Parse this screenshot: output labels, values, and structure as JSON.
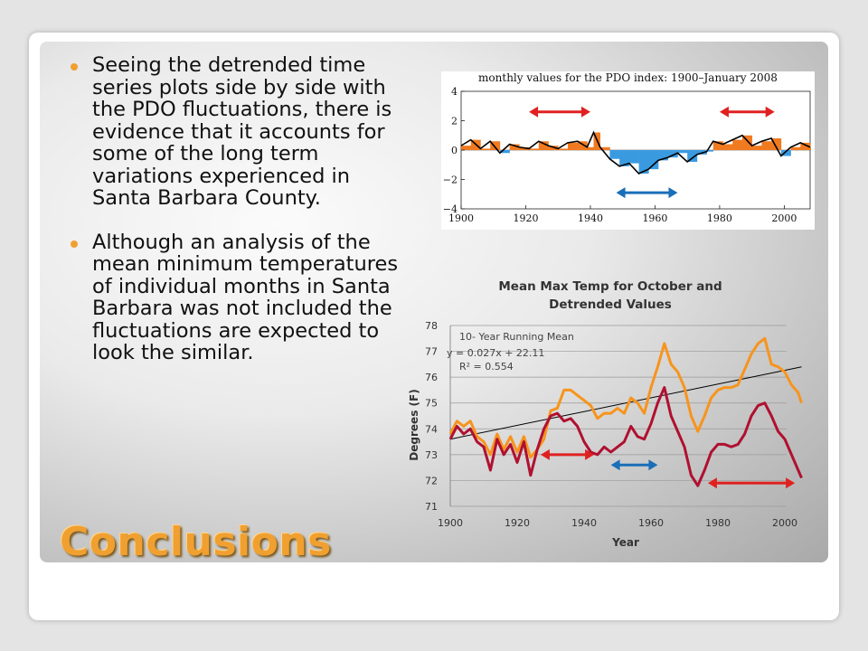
{
  "slide": {
    "title": "Conclusions",
    "bullets": [
      "Seeing the detrended time series plots side by side with the PDO fluctuations, there is evidence that it accounts for some of the long term variations experienced in Santa Barbara County.",
      "Although an analysis of the mean minimum temperatures of individual months in Santa Barbara was not included the fluctuations are expected to look the similar."
    ],
    "accent_color": "#f0a030"
  },
  "chart_data": [
    {
      "type": "area",
      "title": "monthly values for the PDO index: 1900–January 2008",
      "x_ticks": [
        "1900",
        "1920",
        "1940",
        "1960",
        "1980",
        "2000"
      ],
      "y_ticks": [
        "4",
        "2",
        "0",
        "−2",
        "−4"
      ],
      "xlim": [
        1900,
        2008
      ],
      "ylim": [
        -4,
        4
      ],
      "colors": {
        "positive": "#f07a20",
        "negative": "#3a9ae0",
        "smoothed": "#000000"
      },
      "x": [
        1900,
        1903,
        1906,
        1909,
        1912,
        1915,
        1918,
        1921,
        1924,
        1927,
        1930,
        1933,
        1936,
        1939,
        1941,
        1943,
        1946,
        1949,
        1952,
        1955,
        1958,
        1961,
        1964,
        1967,
        1970,
        1973,
        1976,
        1978,
        1981,
        1984,
        1987,
        1990,
        1993,
        1996,
        1999,
        2002,
        2005,
        2008
      ],
      "values": [
        0.3,
        0.7,
        0.1,
        0.6,
        -0.2,
        0.4,
        0.2,
        0.1,
        0.6,
        0.3,
        0.1,
        0.5,
        0.6,
        0.2,
        1.2,
        0.2,
        -0.6,
        -1.1,
        -0.9,
        -1.6,
        -1.3,
        -0.7,
        -0.5,
        -0.2,
        -0.8,
        -0.3,
        -0.1,
        0.6,
        0.4,
        0.7,
        1.0,
        0.3,
        0.6,
        0.8,
        -0.4,
        0.2,
        0.5,
        0.2
      ],
      "annotations": [
        {
          "shape": "double-arrow",
          "color": "#e02020",
          "x_range": [
            1921,
            1940
          ],
          "y": 2.6
        },
        {
          "shape": "double-arrow",
          "color": "#e02020",
          "x_range": [
            1980,
            1997
          ],
          "y": 2.6
        },
        {
          "shape": "double-arrow",
          "color": "#1a6fb8",
          "x_range": [
            1948,
            1967
          ],
          "y": -2.9
        }
      ]
    },
    {
      "type": "line",
      "title": "Mean Max Temp for October and Detrended Values",
      "xlabel": "Year",
      "ylabel": "Degrees (F)",
      "xlim": [
        1900,
        2000
      ],
      "ylim": [
        71,
        78
      ],
      "x_ticks": [
        1900,
        1920,
        1940,
        1960,
        1980,
        2000
      ],
      "y_ticks": [
        71,
        72,
        73,
        74,
        75,
        76,
        77,
        78
      ],
      "grid": true,
      "annotation_lines": [
        "10- Year Running  Mean",
        "y = 0.027x + 22.11",
        "R² = 0.554"
      ],
      "trendline": {
        "x": [
          1900,
          2005
        ],
        "y": [
          73.6,
          76.4
        ],
        "color": "#000000"
      },
      "x": [
        1900,
        1902,
        1904,
        1906,
        1908,
        1910,
        1912,
        1914,
        1916,
        1918,
        1920,
        1922,
        1924,
        1926,
        1928,
        1930,
        1932,
        1934,
        1936,
        1938,
        1940,
        1942,
        1944,
        1946,
        1948,
        1950,
        1952,
        1954,
        1956,
        1958,
        1960,
        1962,
        1964,
        1966,
        1968,
        1970,
        1972,
        1974,
        1976,
        1978,
        1980,
        1982,
        1984,
        1986,
        1988,
        1990,
        1992,
        1994,
        1996,
        1998,
        2000,
        2002,
        2004,
        2005
      ],
      "series": [
        {
          "name": "",
          "color": "#f7941d",
          "values": [
            73.8,
            74.3,
            74.1,
            74.3,
            73.7,
            73.5,
            73.0,
            73.8,
            73.2,
            73.7,
            73.1,
            73.7,
            72.9,
            73.2,
            73.6,
            74.7,
            74.8,
            75.5,
            75.5,
            75.3,
            75.1,
            74.9,
            74.4,
            74.6,
            74.6,
            74.8,
            74.6,
            75.2,
            75.0,
            74.6,
            75.6,
            76.4,
            77.3,
            76.5,
            76.2,
            75.6,
            74.5,
            73.9,
            74.5,
            75.2,
            75.5,
            75.6,
            75.6,
            75.7,
            76.3,
            76.9,
            77.3,
            77.5,
            76.5,
            76.4,
            76.2,
            75.7,
            75.4,
            75.0
          ]
        },
        {
          "name": "",
          "color": "#b01030",
          "values": [
            73.6,
            74.1,
            73.8,
            74.0,
            73.5,
            73.3,
            72.4,
            73.6,
            73.0,
            73.4,
            72.7,
            73.5,
            72.2,
            73.2,
            74.0,
            74.5,
            74.6,
            74.3,
            74.4,
            74.1,
            73.5,
            73.1,
            73.0,
            73.3,
            73.1,
            73.3,
            73.5,
            74.1,
            73.7,
            73.6,
            74.2,
            75.0,
            75.6,
            74.5,
            73.9,
            73.3,
            72.2,
            71.8,
            72.4,
            73.1,
            73.4,
            73.4,
            73.3,
            73.4,
            73.8,
            74.5,
            74.9,
            75.0,
            74.5,
            73.9,
            73.6,
            73.0,
            72.4,
            72.1
          ]
        }
      ],
      "annotations": [
        {
          "shape": "double-arrow",
          "color": "#e02020",
          "x_range": [
            1927,
            1943
          ],
          "y": 73.0
        },
        {
          "shape": "double-arrow",
          "color": "#1a6fb8",
          "x_range": [
            1948,
            1962
          ],
          "y": 72.6
        },
        {
          "shape": "double-arrow",
          "color": "#e02020",
          "x_range": [
            1977,
            2003
          ],
          "y": 71.9
        }
      ]
    }
  ]
}
